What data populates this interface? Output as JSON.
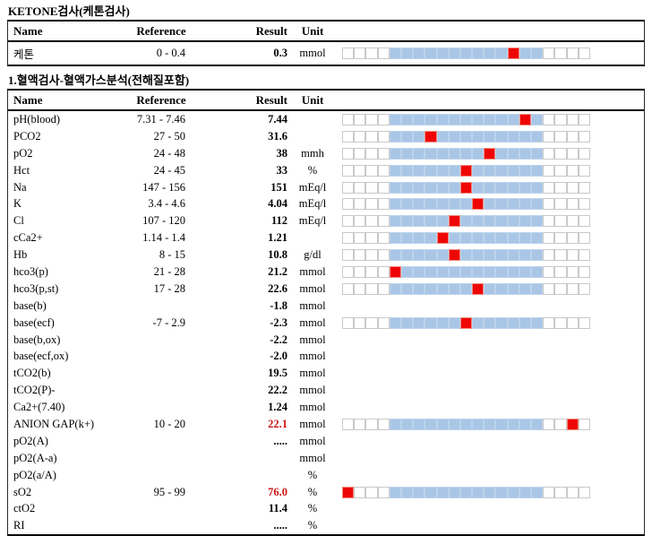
{
  "colors": {
    "bar_blue": "#a9c6e6",
    "bar_red": "#ee0606",
    "cell_border": "#c9c9c9",
    "alert_text": "#cc1414"
  },
  "bar_config": {
    "total_cells": 21,
    "blue_start": 4,
    "blue_end": 16
  },
  "section1": {
    "title": "KETONE검사(케톤검사)",
    "headers": {
      "name": "Name",
      "reference": "Reference",
      "result": "Result",
      "unit": "Unit"
    },
    "rows": [
      {
        "name": "케톤",
        "reference": "0 - 0.4",
        "result": "0.3",
        "unit": "mmol",
        "bar": true,
        "red_index": 14,
        "alert": false
      }
    ]
  },
  "section2": {
    "title": "1.혈액검사-혈액가스분석(전해질포함)",
    "headers": {
      "name": "Name",
      "reference": "Reference",
      "result": "Result",
      "unit": "Unit"
    },
    "rows": [
      {
        "name": "pH(blood)",
        "reference": "7.31 - 7.46",
        "result": "7.44",
        "unit": "",
        "bar": true,
        "red_index": 15,
        "alert": false
      },
      {
        "name": "PCO2",
        "reference": "27 - 50",
        "result": "31.6",
        "unit": "",
        "bar": true,
        "red_index": 7,
        "alert": false
      },
      {
        "name": "pO2",
        "reference": "24 - 48",
        "result": "38",
        "unit": "mmh",
        "bar": true,
        "red_index": 12,
        "alert": false
      },
      {
        "name": "Hct",
        "reference": "24 - 45",
        "result": "33",
        "unit": "%",
        "bar": true,
        "red_index": 10,
        "alert": false
      },
      {
        "name": "Na",
        "reference": "147 - 156",
        "result": "151",
        "unit": "mEq/l",
        "bar": true,
        "red_index": 10,
        "alert": false
      },
      {
        "name": "K",
        "reference": "3.4 - 4.6",
        "result": "4.04",
        "unit": "mEq/l",
        "bar": true,
        "red_index": 11,
        "alert": false
      },
      {
        "name": "Cl",
        "reference": "107 - 120",
        "result": "112",
        "unit": "mEq/l",
        "bar": true,
        "red_index": 9,
        "alert": false
      },
      {
        "name": "cCa2+",
        "reference": "1.14 - 1.4",
        "result": "1.21",
        "unit": "",
        "bar": true,
        "red_index": 8,
        "alert": false
      },
      {
        "name": "Hb",
        "reference": "8 - 15",
        "result": "10.8",
        "unit": "g/dl",
        "bar": true,
        "red_index": 9,
        "alert": false
      },
      {
        "name": "hco3(p)",
        "reference": "21 - 28",
        "result": "21.2",
        "unit": "mmol",
        "bar": true,
        "red_index": 4,
        "alert": false
      },
      {
        "name": "hco3(p,st)",
        "reference": "17 - 28",
        "result": "22.6",
        "unit": "mmol",
        "bar": true,
        "red_index": 11,
        "alert": false
      },
      {
        "name": "base(b)",
        "reference": "",
        "result": "-1.8",
        "unit": "mmol",
        "bar": false,
        "red_index": null,
        "alert": false
      },
      {
        "name": "base(ecf)",
        "reference": "-7 - 2.9",
        "result": "-2.3",
        "unit": "mmol",
        "bar": true,
        "red_index": 10,
        "alert": false
      },
      {
        "name": "base(b,ox)",
        "reference": "",
        "result": "-2.2",
        "unit": "mmol",
        "bar": false,
        "red_index": null,
        "alert": false
      },
      {
        "name": "base(ecf,ox)",
        "reference": "",
        "result": "-2.0",
        "unit": "mmol",
        "bar": false,
        "red_index": null,
        "alert": false
      },
      {
        "name": "tCO2(b)",
        "reference": "",
        "result": "19.5",
        "unit": "mmol",
        "bar": false,
        "red_index": null,
        "alert": false
      },
      {
        "name": "tCO2(P)-",
        "reference": "",
        "result": "22.2",
        "unit": "mmol",
        "bar": false,
        "red_index": null,
        "alert": false
      },
      {
        "name": "Ca2+(7.40)",
        "reference": "",
        "result": "1.24",
        "unit": "mmol",
        "bar": false,
        "red_index": null,
        "alert": false
      },
      {
        "name": "ANION GAP(k+)",
        "reference": "10 - 20",
        "result": "22.1",
        "unit": "mmol",
        "bar": true,
        "red_index": 19,
        "alert": true
      },
      {
        "name": "pO2(A)",
        "reference": "",
        "result": ".....",
        "unit": "mmol",
        "bar": false,
        "red_index": null,
        "alert": false
      },
      {
        "name": "pO2(A-a)",
        "reference": "",
        "result": "",
        "unit": "mmol",
        "bar": false,
        "red_index": null,
        "alert": false
      },
      {
        "name": "pO2(a/A)",
        "reference": "",
        "result": "",
        "unit": "%",
        "bar": false,
        "red_index": null,
        "alert": false
      },
      {
        "name": "sO2",
        "reference": "95 - 99",
        "result": "76.0",
        "unit": "%",
        "bar": true,
        "red_index": 0,
        "alert": true
      },
      {
        "name": "ctO2",
        "reference": "",
        "result": "11.4",
        "unit": "%",
        "bar": false,
        "red_index": null,
        "alert": false
      },
      {
        "name": "RI",
        "reference": "",
        "result": ".....",
        "unit": "%",
        "bar": false,
        "red_index": null,
        "alert": false
      }
    ]
  }
}
